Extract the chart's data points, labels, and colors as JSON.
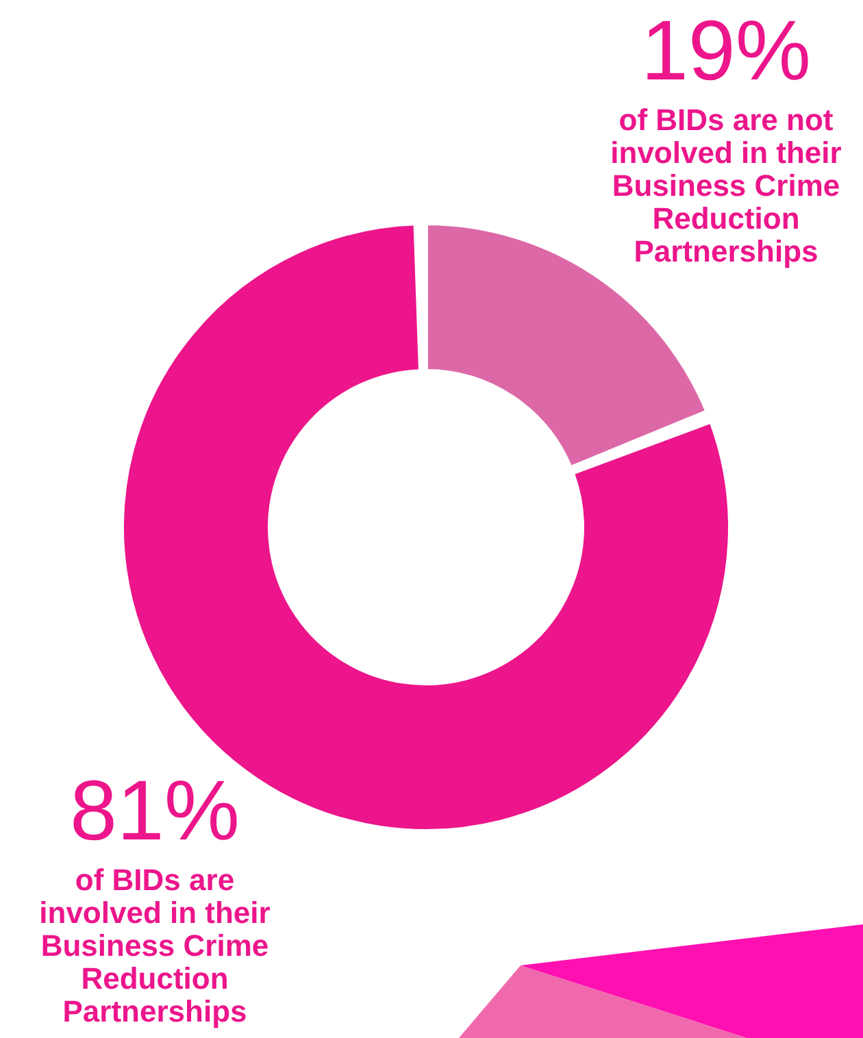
{
  "chart_data": {
    "type": "donut",
    "categories": [
      "of BIDs are not involved in their Business Crime Reduction Partnerships",
      "of BIDs are involved in their Business Crime Reduction Partnerships"
    ],
    "values": [
      19,
      81
    ],
    "colors": [
      "#dd68a8",
      "#ec158b"
    ],
    "value_labels": [
      "19%",
      "81%"
    ]
  }
}
